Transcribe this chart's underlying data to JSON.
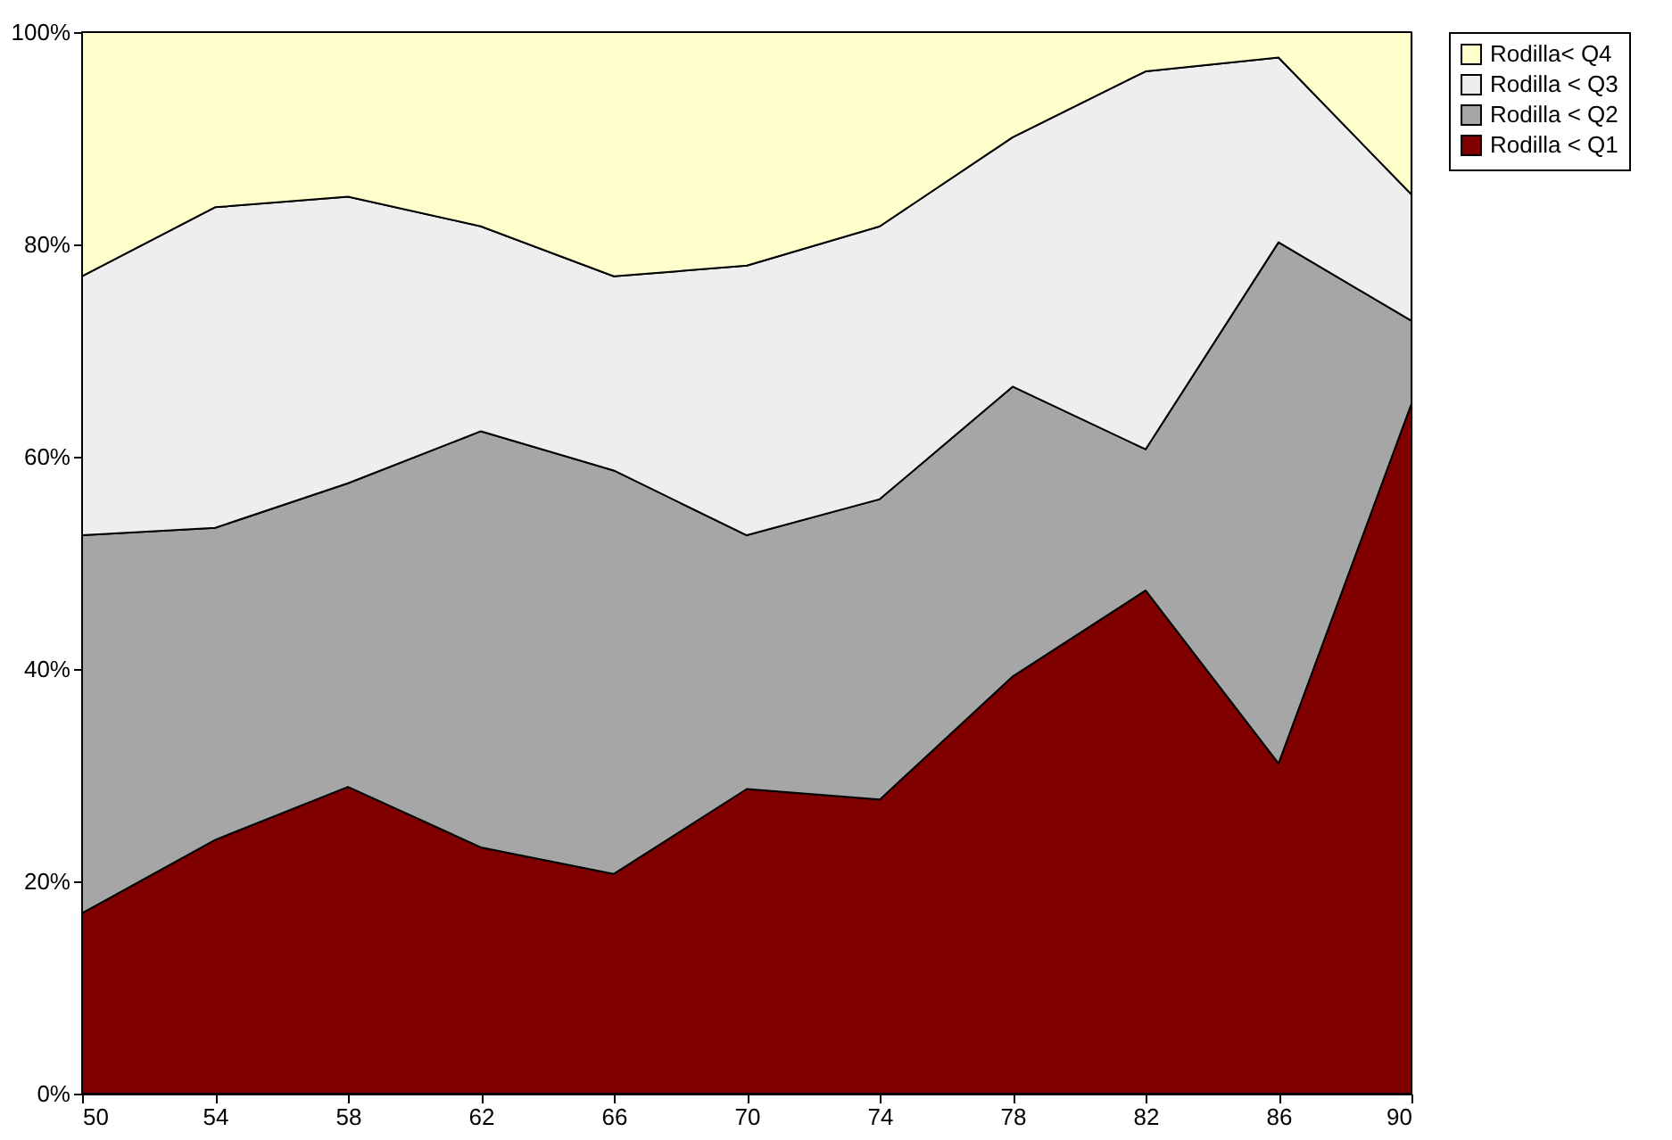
{
  "chart_data": {
    "type": "area",
    "stacked": true,
    "x": [
      50,
      54,
      58,
      62,
      66,
      70,
      74,
      78,
      82,
      86,
      90
    ],
    "series": [
      {
        "name": "Rodilla < Q1",
        "color": "#800000",
        "values": [
          17.0,
          23.9,
          28.9,
          23.2,
          20.7,
          28.7,
          27.7,
          39.3,
          47.4,
          31.1,
          65.0
        ]
      },
      {
        "name": "Rodilla < Q2",
        "color": "#a6a6a6",
        "values": [
          35.6,
          29.4,
          28.6,
          39.2,
          38.0,
          23.9,
          28.3,
          27.3,
          13.3,
          49.1,
          7.8
        ]
      },
      {
        "name": "Rodilla < Q3",
        "color": "#eeeeee",
        "values": [
          24.4,
          30.2,
          27.0,
          19.3,
          18.3,
          25.4,
          25.7,
          23.5,
          35.6,
          17.4,
          11.9
        ]
      },
      {
        "name": "Rodilla< Q4",
        "color": "#ffffcc",
        "values": [
          23.0,
          16.5,
          15.5,
          18.3,
          23.0,
          22.0,
          18.3,
          9.9,
          3.7,
          2.4,
          15.3
        ]
      }
    ],
    "xlim": [
      50,
      90
    ],
    "xticks": [
      50,
      54,
      58,
      62,
      66,
      70,
      74,
      78,
      82,
      86,
      90
    ],
    "ylim": [
      0,
      100
    ],
    "yticks": [
      {
        "value": 0,
        "label": "0%"
      },
      {
        "value": 20,
        "label": "20%"
      },
      {
        "value": 40,
        "label": "40%"
      },
      {
        "value": 60,
        "label": "60%"
      },
      {
        "value": 80,
        "label": "80%"
      },
      {
        "value": 100,
        "label": "100%"
      }
    ],
    "legend": "right"
  }
}
